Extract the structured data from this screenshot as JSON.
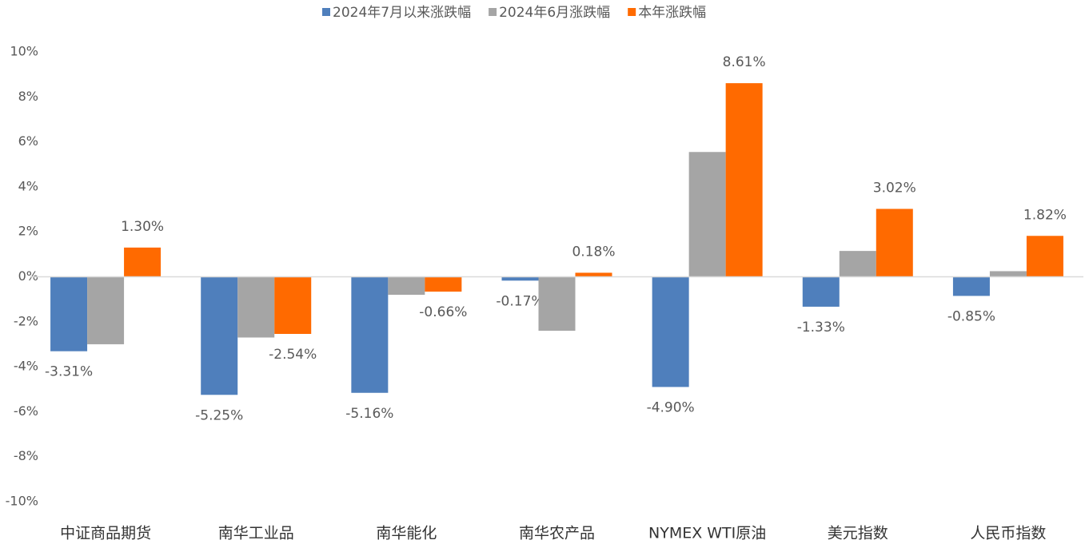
{
  "chart_data": {
    "type": "bar",
    "categories": [
      "中证商品期货",
      "南华工业品",
      "南华能化",
      "南华农产品",
      "NYMEX WTI原油",
      "美元指数",
      "人民币指数"
    ],
    "series": [
      {
        "name": "2024年7月以来涨跌幅",
        "color": "#4f7fbc",
        "values": [
          -3.31,
          -5.25,
          -5.16,
          -0.17,
          -4.9,
          -1.33,
          -0.85
        ],
        "value_labels": [
          "-3.31%",
          "-5.25%",
          "-5.16%",
          "-0.17%",
          "-4.90%",
          "-1.33%",
          "-0.85%"
        ]
      },
      {
        "name": "2024年6月涨跌幅",
        "color": "#a5a5a5",
        "values": [
          -3.0,
          -2.7,
          -0.8,
          -2.4,
          5.55,
          1.15,
          0.25
        ]
      },
      {
        "name": "本年涨跌幅",
        "color": "#ff6a00",
        "values": [
          1.3,
          -2.54,
          -0.66,
          0.18,
          8.61,
          3.02,
          1.82
        ],
        "value_labels": [
          "1.30%",
          "-2.54%",
          "-0.66%",
          "0.18%",
          "8.61%",
          "3.02%",
          "1.82%"
        ]
      }
    ],
    "ylim": [
      -10,
      10
    ],
    "yticks": [
      {
        "value": -10,
        "label": "-10%"
      },
      {
        "value": -8,
        "label": "-8%"
      },
      {
        "value": -6,
        "label": "-6%"
      },
      {
        "value": -4,
        "label": "-4%"
      },
      {
        "value": -2,
        "label": "-2%"
      },
      {
        "value": 0,
        "label": "0%"
      },
      {
        "value": 2,
        "label": "2%"
      },
      {
        "value": 4,
        "label": "4%"
      },
      {
        "value": 6,
        "label": "6%"
      },
      {
        "value": 8,
        "label": "8%"
      },
      {
        "value": 10,
        "label": "10%"
      }
    ],
    "legend": "top",
    "grid": false
  }
}
